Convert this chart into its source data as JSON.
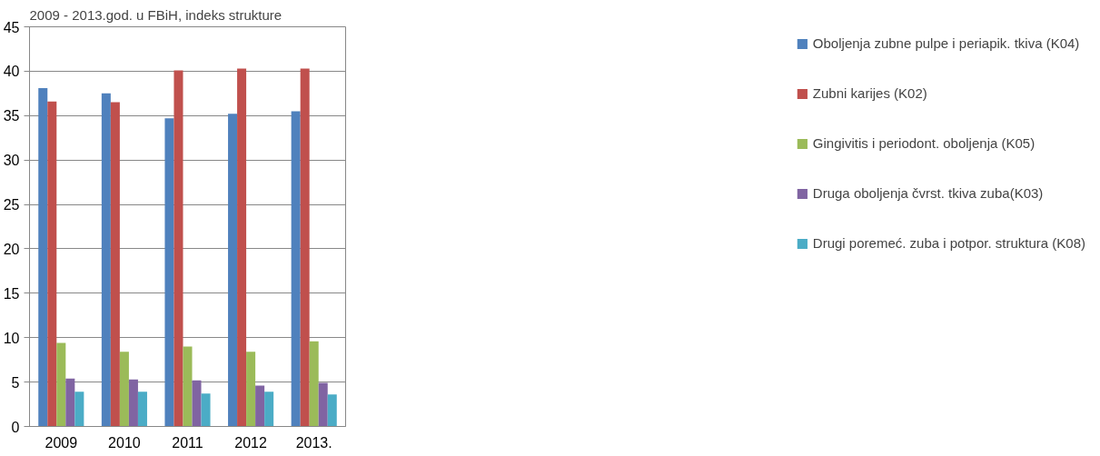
{
  "chart_data": {
    "type": "bar",
    "title": "2009 - 2013.god. u FBiH, indeks strukture",
    "categories": [
      "2009",
      "2010",
      "2011",
      "2012",
      "2013."
    ],
    "series": [
      {
        "name": "Oboljenja zubne pulpe i periapik. tkiva (K04)",
        "color": "#4f81bd",
        "values": [
          38.1,
          37.5,
          34.7,
          35.2,
          35.5
        ]
      },
      {
        "name": "Zubni karijes (K02)",
        "color": "#c0504d",
        "values": [
          36.6,
          36.5,
          40.1,
          40.3,
          40.3
        ]
      },
      {
        "name": "Gingivitis i periodont. oboljenja (K05)",
        "color": "#9bbb59",
        "values": [
          9.4,
          8.4,
          9.0,
          8.4,
          9.6
        ]
      },
      {
        "name": "Druga oboljenja čvrst. tkiva zuba(K03)",
        "color": "#8064a2",
        "values": [
          5.4,
          5.3,
          5.2,
          4.6,
          4.9
        ]
      },
      {
        "name": "Drugi poremeć. zuba i potpor. struktura (K08)",
        "color": "#4bacc6",
        "values": [
          3.9,
          3.9,
          3.7,
          3.9,
          3.6
        ]
      }
    ],
    "ylim": [
      0,
      45
    ],
    "yticks": [
      0,
      5,
      10,
      15,
      20,
      25,
      30,
      35,
      40,
      45
    ],
    "grid": "y",
    "legend": "right"
  }
}
